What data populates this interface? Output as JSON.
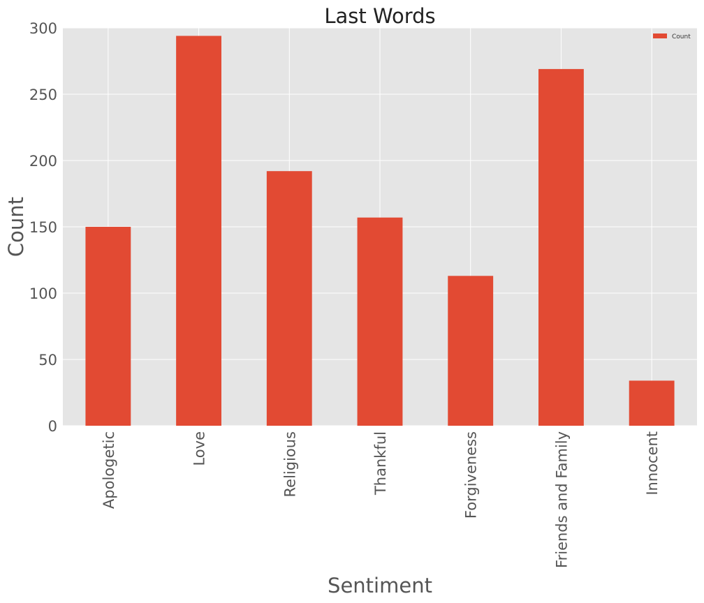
{
  "chart_data": {
    "type": "bar",
    "title": "Last Words",
    "xlabel": "Sentiment",
    "ylabel": "Count",
    "categories": [
      "Apologetic",
      "Love",
      "Religious",
      "Thankful",
      "Forgiveness",
      "Friends and Family",
      "Innocent"
    ],
    "series": [
      {
        "name": "Count",
        "values": [
          150,
          294,
          192,
          157,
          113,
          269,
          34
        ]
      }
    ],
    "ylim": [
      0,
      300
    ],
    "yticks": [
      0,
      50,
      100,
      150,
      200,
      250,
      300
    ],
    "grid": true,
    "legend_position": "top-right",
    "colors": {
      "bar": "#E24A33",
      "plot_background": "#E5E5E5",
      "grid": "#FFFFFF"
    }
  }
}
